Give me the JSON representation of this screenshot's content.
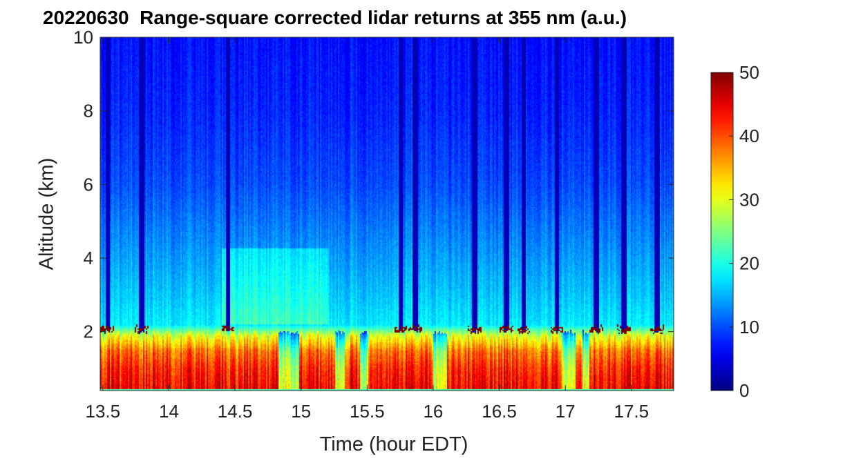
{
  "chart_data": {
    "type": "heatmap",
    "title": "20220630  Range-square corrected lidar returns at 355 nm (a.u.)",
    "xlabel": "Time (hour EDT)",
    "ylabel": "Altitude (km)",
    "xlim": [
      13.48,
      17.82
    ],
    "ylim": [
      0.4,
      10
    ],
    "x_ticks": [
      "13.5",
      "14",
      "14.5",
      "15",
      "15.5",
      "16",
      "16.5",
      "17",
      "17.5"
    ],
    "y_ticks": [
      "2",
      "4",
      "6",
      "8",
      "10"
    ],
    "colorbar": {
      "colormap": "jet",
      "clim": [
        0,
        50
      ],
      "ticks": [
        "0",
        "10",
        "20",
        "30",
        "40",
        "50"
      ]
    },
    "boundary_layer_top_km": 2.0,
    "cloud_base_km": 2.1,
    "profile_km_vs_value": {
      "altitude_km": [
        0.5,
        1.0,
        1.5,
        1.9,
        2.2,
        3.0,
        4.0,
        6.0,
        8.0,
        10.0
      ],
      "typical_value": [
        44,
        42,
        38,
        30,
        18,
        16,
        14,
        10,
        8,
        7
      ]
    },
    "cloud_shadow_times": [
      13.53,
      13.79,
      14.44,
      15.75,
      15.86,
      16.31,
      16.55,
      16.68,
      16.93,
      17.23,
      17.44,
      17.69
    ]
  }
}
